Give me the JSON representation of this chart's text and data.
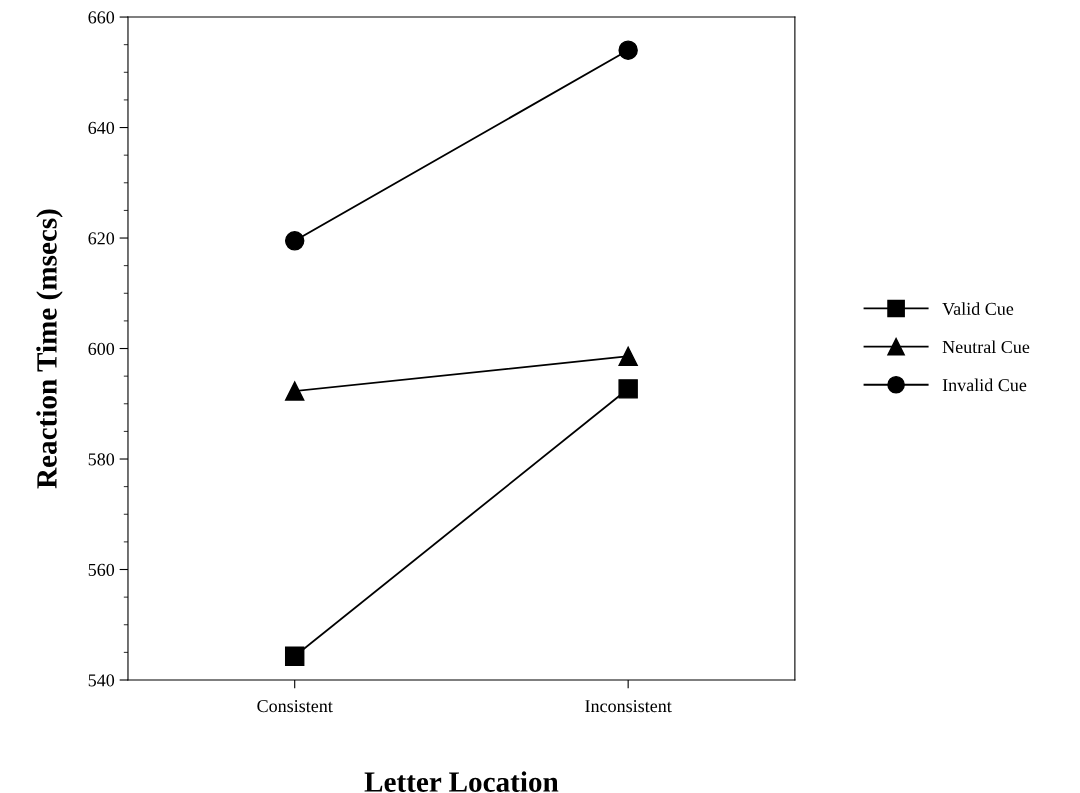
{
  "chart_data": {
    "type": "line",
    "xlabel": "Letter Location",
    "ylabel": "Reaction Time (msecs)",
    "categories": [
      "Consistent",
      "Inconsistent"
    ],
    "series": [
      {
        "name": "Valid Cue",
        "color": "#000000",
        "marker": "square",
        "values": [
          544.3,
          592.7
        ]
      },
      {
        "name": "Neutral Cue",
        "color": "#000000",
        "marker": "triangle",
        "values": [
          592.3,
          598.6
        ]
      },
      {
        "name": "Invalid Cue",
        "color": "#000000",
        "marker": "circle",
        "values": [
          619.5,
          654.0
        ]
      }
    ],
    "ylim": [
      540,
      660
    ],
    "yticks": [
      540,
      560,
      580,
      600,
      620,
      640,
      660
    ],
    "grid": false,
    "legend": "right",
    "line_style": "solid"
  }
}
